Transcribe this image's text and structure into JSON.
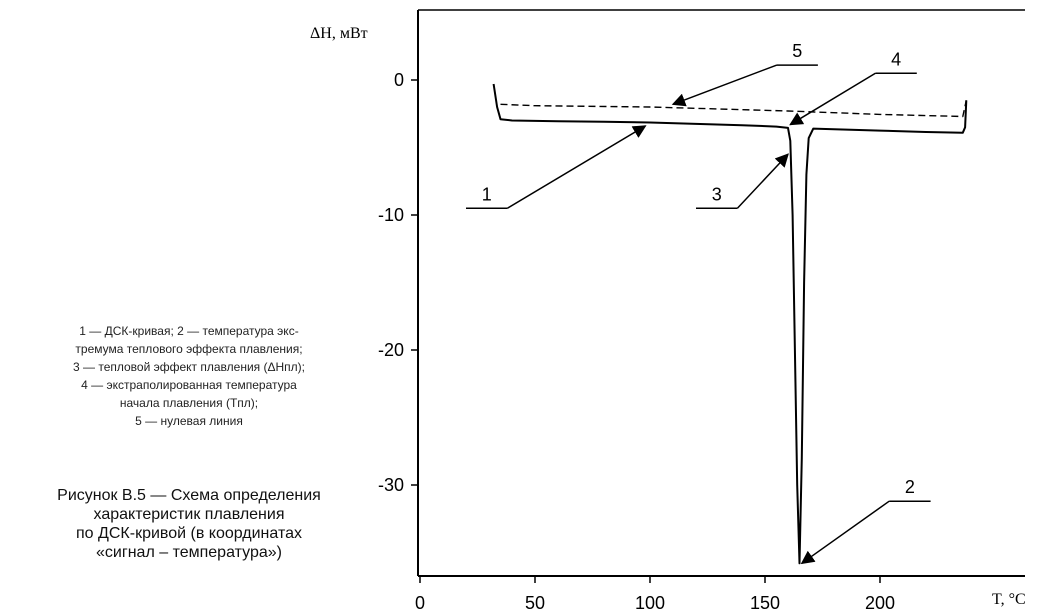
{
  "chart_data": {
    "type": "line",
    "xlabel": "T, °C",
    "ylabel": "ΔH, мВт",
    "xlim": [
      0,
      240
    ],
    "ylim": [
      -37,
      4
    ],
    "x_ticks": [
      0,
      50,
      100,
      150,
      200
    ],
    "y_ticks": [
      0,
      -10,
      -20,
      -30
    ],
    "grid": false,
    "series": [
      {
        "style": "solid",
        "color": "#000000",
        "points": [
          [
            32,
            -0.3
          ],
          [
            33.5,
            -2.0
          ],
          [
            35,
            -2.9
          ],
          [
            40,
            -3.0
          ],
          [
            60,
            -3.05
          ],
          [
            80,
            -3.1
          ],
          [
            100,
            -3.15
          ],
          [
            120,
            -3.25
          ],
          [
            140,
            -3.35
          ],
          [
            155,
            -3.45
          ],
          [
            160,
            -3.55
          ],
          [
            161,
            -4.5
          ],
          [
            162,
            -10
          ],
          [
            163,
            -20
          ],
          [
            164,
            -30
          ],
          [
            165,
            -35.8
          ],
          [
            166,
            -28
          ],
          [
            167,
            -15
          ],
          [
            168,
            -7
          ],
          [
            169,
            -4.3
          ],
          [
            171,
            -3.6
          ],
          [
            180,
            -3.65
          ],
          [
            200,
            -3.75
          ],
          [
            220,
            -3.85
          ],
          [
            236,
            -3.9
          ],
          [
            237,
            -3.5
          ],
          [
            237.5,
            -1.5
          ]
        ]
      },
      {
        "style": "dashed",
        "color": "#000000",
        "points": [
          [
            35,
            -1.8
          ],
          [
            50,
            -1.9
          ],
          [
            100,
            -2.0
          ],
          [
            160,
            -2.3
          ],
          [
            200,
            -2.55
          ],
          [
            236,
            -2.7
          ],
          [
            237.5,
            -1.5
          ]
        ]
      }
    ],
    "annotations": [
      {
        "label": "1",
        "line_start": [
          20,
          -9.5
        ],
        "line_end": [
          38,
          -9.5
        ],
        "arrow_tip": [
          98,
          -3.4
        ]
      },
      {
        "label": "2",
        "line_start": [
          222,
          -31.2
        ],
        "line_end": [
          204,
          -31.2
        ],
        "arrow_tip": [
          166,
          -35.8
        ]
      },
      {
        "label": "3",
        "line_start": [
          120,
          -9.5
        ],
        "line_end": [
          138,
          -9.5
        ],
        "arrow_tip": [
          160,
          -5.5
        ]
      },
      {
        "label": "4",
        "line_start": [
          216,
          0.5
        ],
        "line_end": [
          198,
          0.5
        ],
        "arrow_tip": [
          161,
          -3.3
        ]
      },
      {
        "label": "5",
        "line_start": [
          173,
          1.1
        ],
        "line_end": [
          155,
          1.1
        ],
        "arrow_tip": [
          110,
          -1.8
        ]
      }
    ]
  },
  "legend_lines": [
    "1 — ДСК-кривая; 2 — температура экс-",
    "тремума теплового эффекта плавления;",
    "3 — тепловой эффект плавления (ΔHпл);",
    "4 — экстраполированная температура",
    "начала плавления (Tпл);",
    "5 — нулевая линия"
  ],
  "caption_lines": [
    "Рисунок В.5 — Схема определения",
    "характеристик плавления",
    "по ДСК-кривой (в координатах",
    "«сигнал – температура»)"
  ]
}
